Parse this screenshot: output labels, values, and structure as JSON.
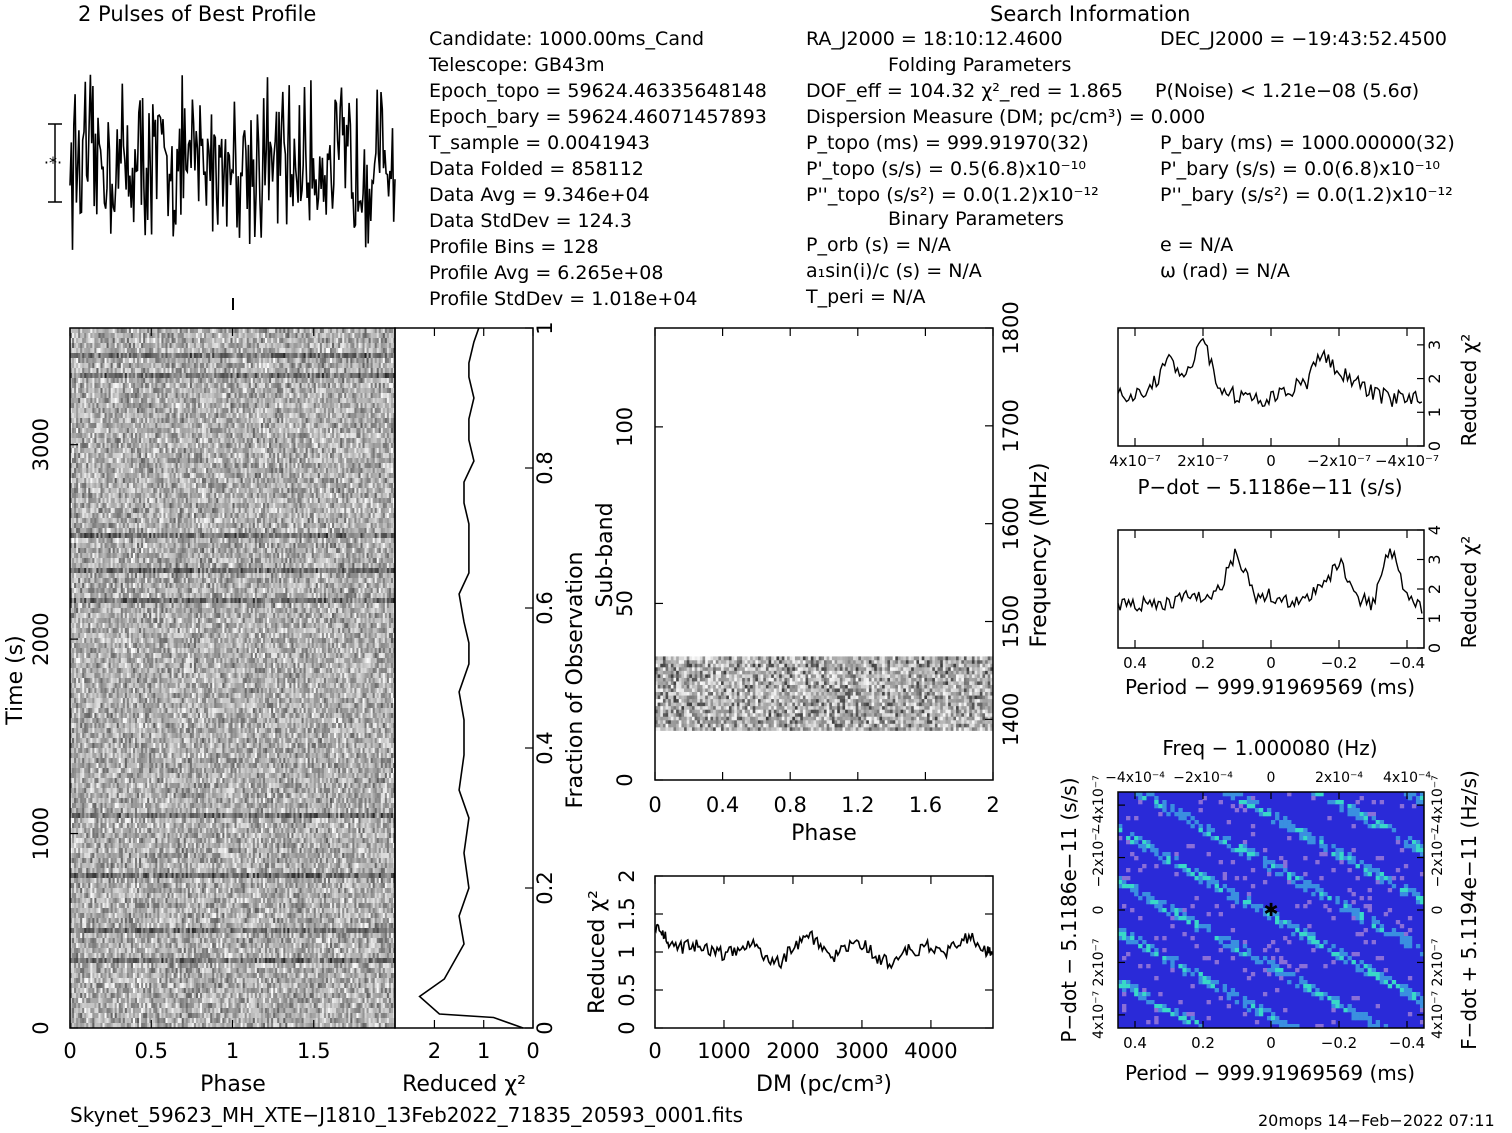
{
  "header": {
    "profile_title": "2 Pulses of Best Profile",
    "search_title": "Search Information",
    "folding_title": "Folding Parameters",
    "binary_title": "Binary Parameters"
  },
  "info": {
    "col1": [
      "Candidate:  1000.00ms_Cand",
      "Telescope:  GB43m",
      "Epoch_topo = 59624.46335648148",
      "Epoch_bary = 59624.46071457893",
      "T_sample       =  0.0041943",
      "Data Folded    =  858112",
      "Data Avg       =  9.346e+04",
      "Data StdDev    =  124.3",
      "Profile Bins   =  128",
      "Profile Avg    =  6.265e+08",
      "Profile StdDev =  1.018e+04"
    ],
    "ra": "RA_J2000 = 18:10:12.4600",
    "dec": "DEC_J2000 = −19:43:52.4500",
    "dof": "DOF_eff = 104.32  χ²_red = 1.865",
    "pnoise": "P(Noise) < 1.21e−08  (5.6σ)",
    "dm": "Dispersion Measure (DM; pc/cm³) = 0.000",
    "p_topo": "P_topo (ms) =  999.91970(32)",
    "p_bary": "P_bary (ms) =  1000.00000(32)",
    "pd_topo": "P'_topo (s/s) =  0.5(6.8)x10⁻¹⁰",
    "pd_bary": "P'_bary (s/s) = 0.0(6.8)x10⁻¹⁰",
    "pdd_topo": "P''_topo (s/s²) = 0.0(1.2)x10⁻¹²",
    "pdd_bary": "P''_bary (s/s²) = 0.0(1.2)x10⁻¹²",
    "porb": "P_orb (s) = N/A",
    "ecc": "e = N/A",
    "a1": "a₁sin(i)/c (s) = N/A",
    "omega": "ω (rad) = N/A",
    "tperi": "T_peri = N/A"
  },
  "footer": {
    "filename": "Skynet_59623_MH_XTE−J1810_13Feb2022_71835_20593_0001.fits",
    "stamp": "20mops 14−Feb−2022 07:11"
  },
  "colors": {
    "ink": "#000000",
    "ppdot_low": "#2a2ad8",
    "ppdot_mid": "#3a8fe0",
    "ppdot_high": "#39d8c8"
  },
  "chart_data": [
    {
      "name": "profile",
      "type": "line",
      "title": "2 Pulses of Best Profile",
      "x_range": [
        0,
        2
      ],
      "n_points": 256,
      "shape": "noise-like, no pulse"
    },
    {
      "name": "time-phase",
      "type": "heatmap",
      "xlabel": "Phase",
      "ylabel": "Time (s)",
      "xticks": [
        "0",
        "0.5",
        "1",
        "1.5"
      ],
      "yticks": [
        "0",
        "1000",
        "2000",
        "3000"
      ],
      "xlim": [
        0,
        2
      ],
      "ylim": [
        0,
        3600
      ]
    },
    {
      "name": "time-chi2",
      "type": "line",
      "xlabel": "Reduced χ²",
      "ylabel": "Fraction of Observation",
      "xticks": [
        "2",
        "1",
        "0"
      ],
      "yticks": [
        "0",
        "0.2",
        "0.4",
        "0.6",
        "0.8",
        "1"
      ],
      "xlim": [
        2.8,
        0
      ],
      "ylim": [
        0,
        1
      ],
      "x": [
        0.2,
        0.8,
        1.9,
        2.3,
        1.8,
        1.4,
        1.5,
        1.3,
        1.4,
        1.3,
        1.5,
        1.4,
        1.4,
        1.5,
        1.3,
        1.3,
        1.4,
        1.5,
        1.3,
        1.3,
        1.3,
        1.4,
        1.4,
        1.2,
        1.3,
        1.3,
        1.2,
        1.3,
        1.3,
        1.2,
        1.1
      ],
      "y": [
        0,
        0.015,
        0.02,
        0.045,
        0.07,
        0.12,
        0.16,
        0.2,
        0.25,
        0.3,
        0.34,
        0.39,
        0.44,
        0.48,
        0.52,
        0.55,
        0.58,
        0.62,
        0.65,
        0.68,
        0.72,
        0.75,
        0.78,
        0.81,
        0.84,
        0.87,
        0.9,
        0.93,
        0.95,
        0.98,
        1.0
      ]
    },
    {
      "name": "subband-phase",
      "type": "heatmap",
      "xlabel": "Phase",
      "ylabel": "Sub-band",
      "y2label": "Frequency (MHz)",
      "xticks": [
        "0",
        "0.4",
        "0.8",
        "1.2",
        "1.6",
        "2"
      ],
      "yticks": [
        "0",
        "50",
        "100"
      ],
      "y2ticks": [
        "1400",
        "1500",
        "1600",
        "1700",
        "1800"
      ],
      "xlim": [
        0,
        2
      ],
      "ylim": [
        0,
        128
      ],
      "filled_subbands": [
        14,
        35
      ]
    },
    {
      "name": "dm-chi2",
      "type": "line",
      "xlabel": "DM (pc/cm³)",
      "ylabel": "Reduced χ²",
      "xticks": [
        "0",
        "1000",
        "2000",
        "3000",
        "4000"
      ],
      "yticks": [
        "0",
        "0.5",
        "1",
        "1.5",
        "2"
      ],
      "xlim": [
        0,
        4900
      ],
      "ylim": [
        0,
        2
      ],
      "x": [
        0,
        100,
        200,
        400,
        600,
        800,
        1000,
        1200,
        1400,
        1600,
        1800,
        2000,
        2200,
        2400,
        2600,
        2800,
        3000,
        3200,
        3400,
        3600,
        3800,
        4000,
        4200,
        4400,
        4600,
        4800,
        4900
      ],
      "y": [
        1.35,
        1.25,
        1.15,
        1.05,
        1.1,
        1.0,
        0.98,
        1.05,
        1.15,
        0.95,
        0.85,
        1.05,
        1.25,
        1.1,
        0.95,
        1.05,
        1.1,
        0.95,
        0.85,
        1.05,
        1.0,
        1.1,
        1.0,
        1.15,
        1.2,
        1.0,
        1.05
      ]
    },
    {
      "name": "pdot-chi2",
      "type": "line",
      "xlabel": "P−dot − 5.1186e−11 (s/s)",
      "ylabel": "Reduced χ²",
      "xticks": [
        "4x10⁻⁷",
        "2x10⁻⁷",
        "0",
        "−2x10⁻⁷",
        "−4x10⁻⁷"
      ],
      "yticks": [
        "0",
        "1",
        "2",
        "3"
      ],
      "xlim": [
        4.5e-07,
        -4.5e-07
      ],
      "ylim": [
        0,
        3.5
      ],
      "x": [
        4.5e-07,
        4e-07,
        3.5e-07,
        3e-07,
        2.5e-07,
        2e-07,
        1.5e-07,
        1e-07,
        5e-08,
        0,
        -5e-08,
        -1e-07,
        -1.5e-07,
        -2e-07,
        -2.5e-07,
        -3e-07,
        -3.5e-07,
        -4e-07,
        -4.5e-07
      ],
      "y": [
        1.6,
        1.5,
        1.8,
        2.5,
        2.0,
        3.1,
        1.6,
        1.5,
        1.3,
        1.5,
        1.7,
        1.8,
        2.8,
        2.2,
        1.9,
        1.6,
        1.4,
        1.5,
        1.3
      ]
    },
    {
      "name": "period-chi2",
      "type": "line",
      "xlabel": "Period − 999.91969569 (ms)",
      "ylabel": "Reduced χ²",
      "xticks": [
        "0.4",
        "0.2",
        "0",
        "−0.2",
        "−0.4"
      ],
      "yticks": [
        "0",
        "1",
        "2",
        "3",
        "4"
      ],
      "xlim": [
        0.45,
        -0.45
      ],
      "ylim": [
        0,
        4
      ],
      "x": [
        0.45,
        0.4,
        0.35,
        0.3,
        0.25,
        0.2,
        0.15,
        0.1,
        0.05,
        0,
        -0.05,
        -0.1,
        -0.15,
        -0.2,
        -0.25,
        -0.3,
        -0.35,
        -0.4,
        -0.45
      ],
      "y": [
        1.5,
        1.4,
        1.6,
        1.5,
        1.8,
        1.6,
        2.0,
        3.3,
        1.7,
        1.8,
        1.6,
        1.7,
        2.0,
        3.0,
        1.7,
        1.5,
        3.5,
        1.8,
        1.2
      ]
    },
    {
      "name": "p-pdot",
      "type": "heatmap",
      "title": "Freq − 1.000080 (Hz)",
      "xlabel": "Period − 999.91969569 (ms)",
      "ylabel": "P−dot − 5.1186e−11 (s/s)",
      "y2label": "F−dot + 5.1194e−11 (Hz/s)",
      "xticks": [
        "0.4",
        "0.2",
        "0",
        "−0.2",
        "−0.4"
      ],
      "x2ticks": [
        "−4x10⁻⁴",
        "−2x10⁻⁴",
        "0",
        "2x10⁻⁴",
        "4x10⁻⁴"
      ],
      "yticks": [
        "4x10⁻⁷",
        "2x10⁻⁷",
        "0",
        "−2x10⁻⁷",
        "−4x10⁻⁷"
      ],
      "y2ticks": [
        "4x10⁻⁷",
        "2x10⁻⁷",
        "0",
        "−2x10⁻⁷",
        "−4x10⁻⁷"
      ],
      "xlim": [
        0.45,
        -0.45
      ],
      "ylim": [
        -4.5e-07,
        4.5e-07
      ],
      "best": [
        0,
        0
      ]
    }
  ]
}
